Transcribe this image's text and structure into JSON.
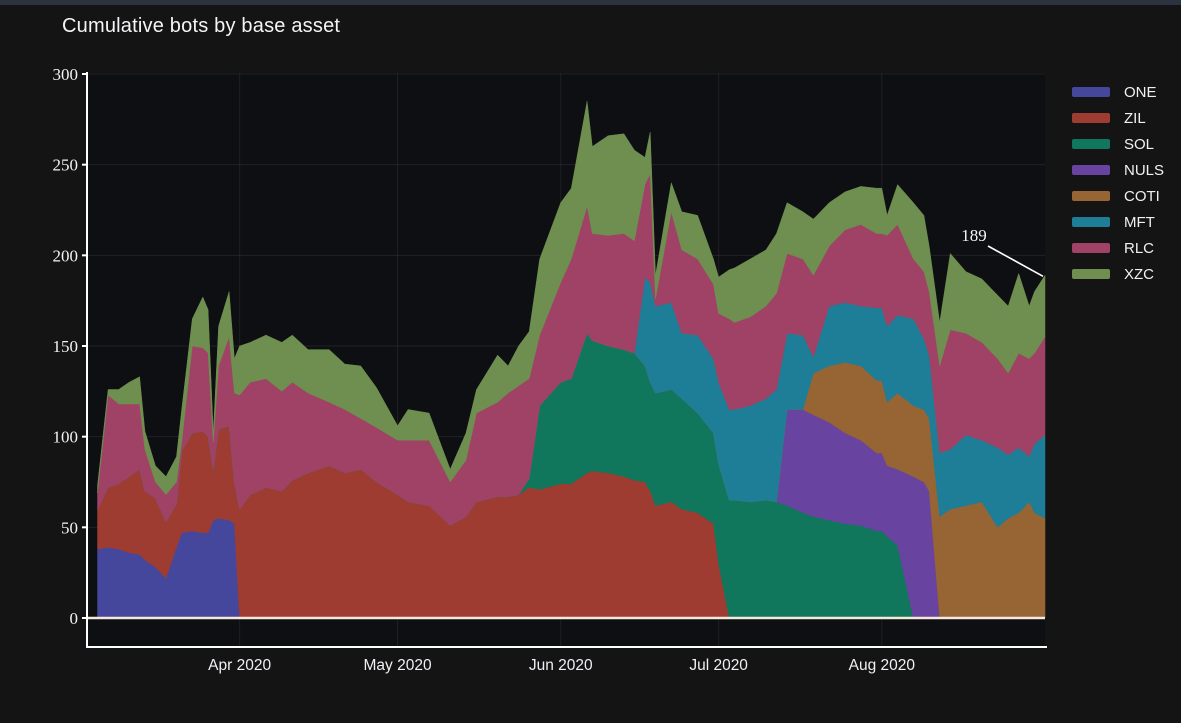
{
  "title": "Cumulative bots by base asset",
  "y_axis": {
    "ticks": [
      "0",
      "50",
      "100",
      "150",
      "200",
      "250",
      "300"
    ]
  },
  "x_axis": {
    "ticks": [
      "Apr 2020",
      "May 2020",
      "Jun 2020",
      "Jul 2020",
      "Aug 2020"
    ],
    "tick_dates": [
      "2020-04-01",
      "2020-05-01",
      "2020-06-01",
      "2020-07-01",
      "2020-08-01"
    ]
  },
  "legend": {
    "position": "right",
    "items": [
      {
        "label": "ONE",
        "color": "#44479b"
      },
      {
        "label": "ZIL",
        "color": "#9e3c32"
      },
      {
        "label": "SOL",
        "color": "#11775c"
      },
      {
        "label": "NULS",
        "color": "#6843a0"
      },
      {
        "label": "COTI",
        "color": "#976434"
      },
      {
        "label": "MFT",
        "color": "#1f7e97"
      },
      {
        "label": "RLC",
        "color": "#a04265"
      },
      {
        "label": "XZC",
        "color": "#6e8f4f"
      }
    ]
  },
  "annotation": {
    "text": "189"
  },
  "chart_data": {
    "type": "area",
    "stacked": true,
    "title": "Cumulative bots by base asset",
    "xlabel": "",
    "ylabel": "",
    "ylim": [
      0,
      300
    ],
    "grid": true,
    "legend_position": "right",
    "annotations": [
      {
        "text": "189",
        "x": "2020-09-01",
        "y": 189
      }
    ],
    "x": [
      "2020-03-05",
      "2020-03-07",
      "2020-03-09",
      "2020-03-11",
      "2020-03-13",
      "2020-03-14",
      "2020-03-16",
      "2020-03-18",
      "2020-03-20",
      "2020-03-21",
      "2020-03-23",
      "2020-03-25",
      "2020-03-26",
      "2020-03-27",
      "2020-03-28",
      "2020-03-30",
      "2020-03-31",
      "2020-04-01",
      "2020-04-03",
      "2020-04-06",
      "2020-04-09",
      "2020-04-11",
      "2020-04-14",
      "2020-04-18",
      "2020-04-21",
      "2020-04-24",
      "2020-04-27",
      "2020-05-01",
      "2020-05-03",
      "2020-05-07",
      "2020-05-11",
      "2020-05-14",
      "2020-05-16",
      "2020-05-20",
      "2020-05-22",
      "2020-05-24",
      "2020-05-26",
      "2020-05-28",
      "2020-06-01",
      "2020-06-03",
      "2020-06-06",
      "2020-06-07",
      "2020-06-10",
      "2020-06-13",
      "2020-06-15",
      "2020-06-17",
      "2020-06-18",
      "2020-06-19",
      "2020-06-22",
      "2020-06-24",
      "2020-06-27",
      "2020-06-30",
      "2020-07-01",
      "2020-07-03",
      "2020-07-04",
      "2020-07-07",
      "2020-07-10",
      "2020-07-12",
      "2020-07-14",
      "2020-07-17",
      "2020-07-19",
      "2020-07-22",
      "2020-07-25",
      "2020-07-28",
      "2020-07-31",
      "2020-08-01",
      "2020-08-02",
      "2020-08-04",
      "2020-08-07",
      "2020-08-09",
      "2020-08-10",
      "2020-08-12",
      "2020-08-14",
      "2020-08-17",
      "2020-08-20",
      "2020-08-23",
      "2020-08-25",
      "2020-08-27",
      "2020-08-29",
      "2020-08-30",
      "2020-09-01"
    ],
    "series": [
      {
        "name": "ONE",
        "color": "#44479b",
        "values": [
          38,
          39,
          38,
          36,
          35,
          32,
          28,
          22,
          39,
          47,
          48,
          47,
          47,
          54,
          55,
          54,
          52,
          0,
          0,
          0,
          0,
          0,
          0,
          0,
          0,
          0,
          0,
          0,
          0,
          0,
          0,
          0,
          0,
          0,
          0,
          0,
          0,
          0,
          0,
          0,
          0,
          0,
          0,
          0,
          0,
          0,
          0,
          0,
          0,
          0,
          0,
          0,
          0,
          0,
          0,
          0,
          0,
          0,
          0,
          0,
          0,
          0,
          0,
          0,
          0,
          0,
          0,
          0,
          0,
          0,
          0,
          0,
          0,
          0,
          0,
          0,
          0,
          0,
          0,
          0,
          0
        ]
      },
      {
        "name": "ZIL",
        "color": "#9e3c32",
        "values": [
          22,
          33,
          36,
          42,
          47,
          38,
          38,
          31,
          24,
          45,
          54,
          56,
          53,
          28,
          49,
          52,
          23,
          60,
          68,
          72,
          70,
          76,
          80,
          84,
          80,
          82,
          75,
          68,
          64,
          62,
          51,
          56,
          64,
          67,
          67,
          68,
          72,
          71,
          74,
          74,
          80,
          81,
          80,
          78,
          76,
          75,
          70,
          62,
          64,
          60,
          58,
          52,
          30,
          0,
          0,
          0,
          0,
          0,
          0,
          0,
          0,
          0,
          0,
          0,
          0,
          0,
          0,
          0,
          0,
          0,
          0,
          0,
          0,
          0,
          0,
          0,
          0,
          0,
          0,
          0,
          0
        ]
      },
      {
        "name": "SOL",
        "color": "#11775c",
        "values": [
          0,
          0,
          0,
          0,
          0,
          0,
          0,
          0,
          0,
          0,
          0,
          0,
          0,
          0,
          0,
          0,
          0,
          0,
          0,
          0,
          0,
          0,
          0,
          0,
          0,
          0,
          0,
          0,
          0,
          0,
          0,
          0,
          0,
          0,
          0,
          0,
          5,
          46,
          56,
          58,
          77,
          72,
          70,
          70,
          70,
          64,
          60,
          62,
          62,
          61,
          55,
          50,
          55,
          65,
          65,
          64,
          65,
          64,
          62,
          58,
          56,
          54,
          52,
          51,
          48,
          48,
          45,
          40,
          0,
          0,
          0,
          0,
          0,
          0,
          0,
          0,
          0,
          0,
          0,
          0,
          0
        ]
      },
      {
        "name": "NULS",
        "color": "#6843a0",
        "values": [
          0,
          0,
          0,
          0,
          0,
          0,
          0,
          0,
          0,
          0,
          0,
          0,
          0,
          0,
          0,
          0,
          0,
          0,
          0,
          0,
          0,
          0,
          0,
          0,
          0,
          0,
          0,
          0,
          0,
          0,
          0,
          0,
          0,
          0,
          0,
          0,
          0,
          0,
          0,
          0,
          0,
          0,
          0,
          0,
          0,
          0,
          0,
          0,
          0,
          0,
          0,
          0,
          0,
          0,
          0,
          0,
          0,
          0,
          53,
          57,
          56,
          54,
          50,
          47,
          43,
          43,
          39,
          42,
          78,
          75,
          70,
          0,
          0,
          0,
          0,
          0,
          0,
          0,
          0,
          0,
          0
        ]
      },
      {
        "name": "COTI",
        "color": "#976434",
        "values": [
          0,
          0,
          0,
          0,
          0,
          0,
          0,
          0,
          0,
          0,
          0,
          0,
          0,
          0,
          0,
          0,
          0,
          0,
          0,
          0,
          0,
          0,
          0,
          0,
          0,
          0,
          0,
          0,
          0,
          0,
          0,
          0,
          0,
          0,
          0,
          0,
          0,
          0,
          0,
          0,
          0,
          0,
          0,
          0,
          0,
          0,
          0,
          0,
          0,
          0,
          0,
          0,
          0,
          0,
          0,
          0,
          0,
          0,
          0,
          0,
          23,
          31,
          39,
          41,
          40,
          40,
          35,
          42,
          39,
          40,
          40,
          56,
          60,
          62,
          64,
          50,
          55,
          58,
          64,
          58,
          55
        ]
      },
      {
        "name": "MFT",
        "color": "#1f7e97",
        "values": [
          0,
          0,
          0,
          0,
          0,
          0,
          0,
          0,
          0,
          0,
          0,
          0,
          0,
          0,
          0,
          0,
          0,
          0,
          0,
          0,
          0,
          0,
          0,
          0,
          0,
          0,
          0,
          0,
          0,
          0,
          0,
          0,
          0,
          0,
          0,
          0,
          0,
          0,
          0,
          0,
          0,
          0,
          0,
          0,
          0,
          49,
          55,
          48,
          48,
          36,
          43,
          41,
          45,
          50,
          50,
          53,
          56,
          62,
          42,
          41,
          9,
          33,
          33,
          33,
          40,
          40,
          42,
          43,
          48,
          39,
          35,
          35,
          33,
          39,
          34,
          44,
          35,
          36,
          25,
          38,
          46
        ]
      },
      {
        "name": "RLC",
        "color": "#a04265",
        "values": [
          9,
          51,
          44,
          40,
          36,
          23,
          9,
          15,
          12,
          5,
          48,
          46,
          46,
          15,
          35,
          49,
          49,
          63,
          62,
          60,
          55,
          54,
          44,
          35,
          35,
          28,
          30,
          30,
          34,
          36,
          24,
          31,
          49,
          52,
          57,
          60,
          55,
          39,
          55,
          66,
          70,
          59,
          61,
          64,
          62,
          51,
          60,
          4,
          50,
          46,
          42,
          41,
          38,
          50,
          48,
          49,
          51,
          53,
          44,
          42,
          45,
          33,
          40,
          45,
          41,
          41,
          50,
          50,
          33,
          37,
          35,
          48,
          66,
          56,
          54,
          49,
          45,
          52,
          54,
          50,
          54
        ]
      },
      {
        "name": "XZC",
        "color": "#6e8f4f",
        "values": [
          4,
          3,
          8,
          12,
          15,
          10,
          9,
          10,
          14,
          18,
          15,
          28,
          24,
          5,
          22,
          25,
          19,
          27,
          22,
          24,
          27,
          26,
          24,
          29,
          25,
          29,
          22,
          8,
          17,
          15,
          7,
          15,
          13,
          26,
          15,
          22,
          26,
          42,
          44,
          39,
          58,
          48,
          55,
          55,
          50,
          15,
          23,
          13,
          16,
          21,
          24,
          14,
          20,
          27,
          30,
          32,
          31,
          33,
          28,
          26,
          31,
          24,
          21,
          21,
          25,
          25,
          11,
          22,
          31,
          31,
          25,
          24,
          42,
          34,
          35,
          35,
          37,
          44,
          29,
          34,
          34
        ]
      }
    ]
  }
}
